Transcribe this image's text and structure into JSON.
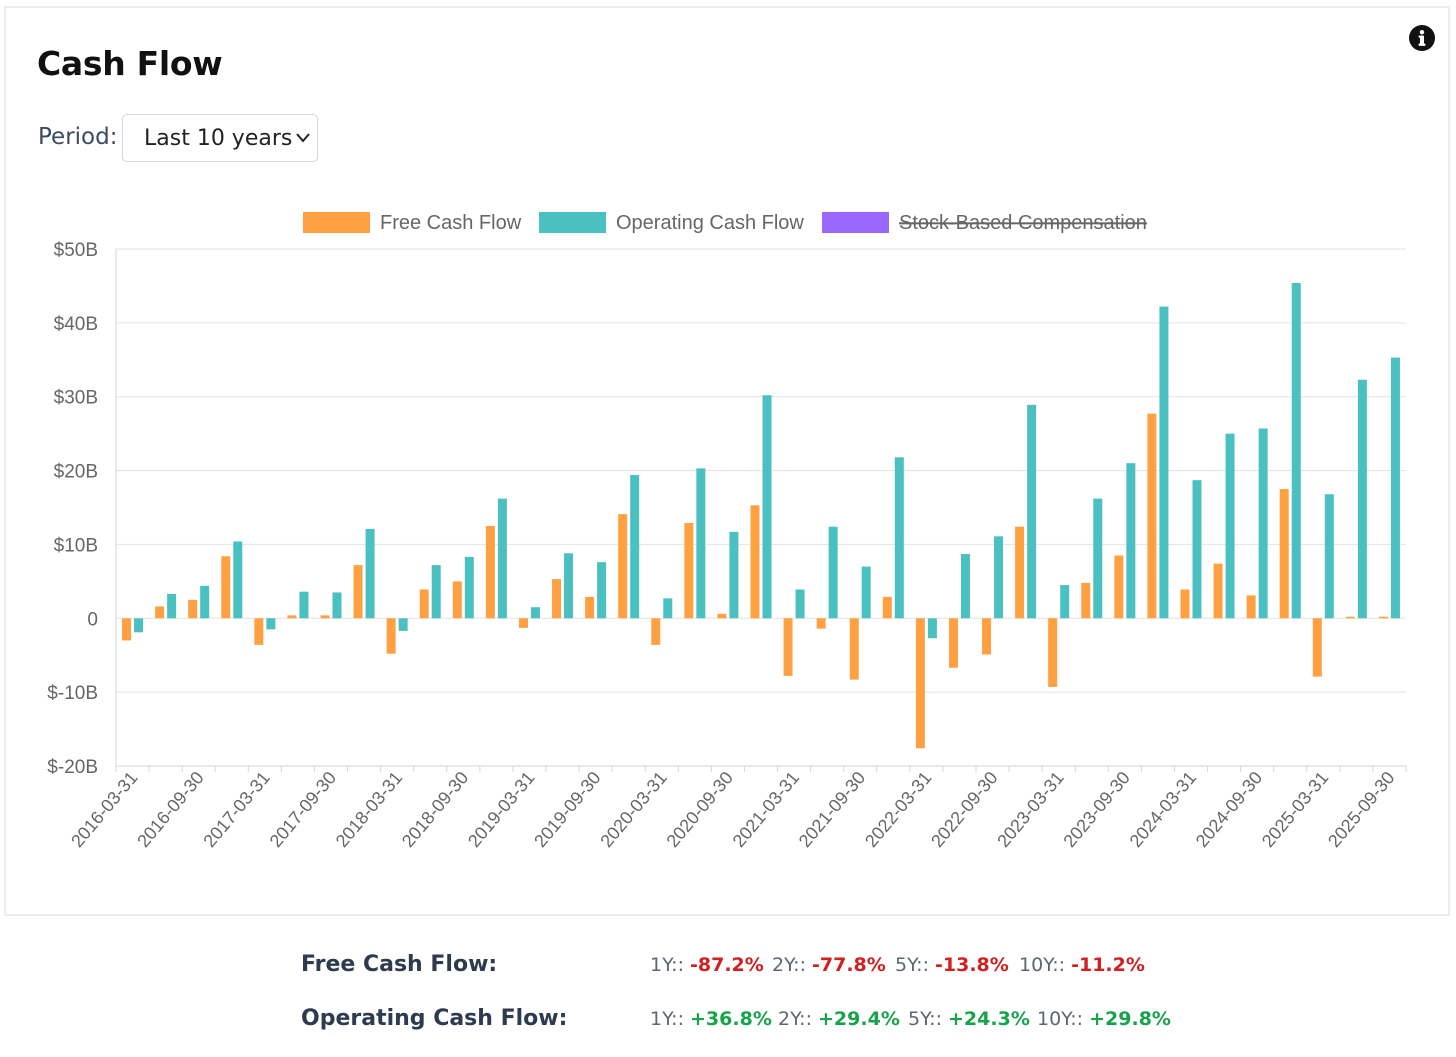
{
  "header": {
    "title": "Cash Flow",
    "info_icon": "info-icon"
  },
  "period": {
    "label": "Period:",
    "selected": "Last 10 years"
  },
  "colors": {
    "fcf": "#ffa143",
    "ocf": "#4bc0c0",
    "sbc": "#9966ff",
    "neg": "#d21f1f",
    "pos": "#16a34a"
  },
  "chart_data": {
    "type": "bar",
    "legend": [
      {
        "name": "Free Cash Flow",
        "hidden": false
      },
      {
        "name": "Operating Cash Flow",
        "hidden": false
      },
      {
        "name": "Stock-Based Compensation",
        "hidden": true
      }
    ],
    "y_tick_labels": [
      "$50B",
      "$40B",
      "$30B",
      "$20B",
      "$10B",
      "0",
      "$-10B",
      "$-20B"
    ],
    "y_ticks": [
      50,
      40,
      30,
      20,
      10,
      0,
      -10,
      -20
    ],
    "ylim": [
      -20,
      50
    ],
    "x_tick_labels": [
      "2016-03-31",
      "2016-09-30",
      "2017-03-31",
      "2017-09-30",
      "2018-03-31",
      "2018-09-30",
      "2019-03-31",
      "2019-09-30",
      "2020-03-31",
      "2020-09-30",
      "2021-03-31",
      "2021-09-30",
      "2022-03-31",
      "2022-09-30",
      "2023-03-31",
      "2023-09-30",
      "2024-03-31",
      "2024-09-30",
      "2025-03-31",
      "2025-09-30"
    ],
    "categories": [
      "2016-03-31",
      "2016-06-30",
      "2016-09-30",
      "2016-12-31",
      "2017-03-31",
      "2017-06-30",
      "2017-09-30",
      "2017-12-31",
      "2018-03-31",
      "2018-06-30",
      "2018-09-30",
      "2018-12-31",
      "2019-03-31",
      "2019-06-30",
      "2019-09-30",
      "2019-12-31",
      "2020-03-31",
      "2020-06-30",
      "2020-09-30",
      "2020-12-31",
      "2021-03-31",
      "2021-06-30",
      "2021-09-30",
      "2021-12-31",
      "2022-03-31",
      "2022-06-30",
      "2022-09-30",
      "2022-12-31",
      "2023-03-31",
      "2023-06-30",
      "2023-09-30",
      "2023-12-31",
      "2024-03-31",
      "2024-06-30",
      "2024-09-30",
      "2024-12-31",
      "2025-03-31",
      "2025-06-30",
      "2025-09-30"
    ],
    "series": [
      {
        "name": "Free Cash Flow",
        "values": [
          -3.0,
          1.6,
          2.5,
          8.4,
          -3.6,
          0.4,
          0.4,
          7.2,
          -4.8,
          3.9,
          5.0,
          12.5,
          -1.3,
          5.3,
          2.9,
          14.1,
          -3.6,
          12.9,
          0.6,
          15.3,
          -7.8,
          -1.4,
          -8.3,
          2.9,
          -17.6,
          -6.7,
          -4.9,
          12.4,
          -9.3,
          4.8,
          8.5,
          27.7,
          3.9,
          7.4,
          3.1,
          17.5,
          -7.9,
          0.2,
          0.2
        ]
      },
      {
        "name": "Operating Cash Flow",
        "values": [
          -1.9,
          3.3,
          4.4,
          10.4,
          -1.5,
          3.6,
          3.5,
          12.1,
          -1.7,
          7.2,
          8.3,
          16.2,
          1.5,
          8.8,
          7.6,
          19.4,
          2.7,
          20.3,
          11.7,
          30.2,
          3.9,
          12.4,
          7.0,
          21.8,
          -2.7,
          8.7,
          11.1,
          28.9,
          4.5,
          16.2,
          21.0,
          42.2,
          18.7,
          25.0,
          25.7,
          45.4,
          16.8,
          32.3,
          35.3
        ]
      }
    ]
  },
  "stats": [
    {
      "label": "Free Cash Flow:",
      "items": [
        {
          "k": "1Y::",
          "v": "-87.2%",
          "sign": "neg"
        },
        {
          "k": "2Y::",
          "v": "-77.8%",
          "sign": "neg"
        },
        {
          "k": "5Y::",
          "v": "-13.8%",
          "sign": "neg"
        },
        {
          "k": "10Y::",
          "v": "-11.2%",
          "sign": "neg"
        }
      ]
    },
    {
      "label": "Operating Cash Flow:",
      "items": [
        {
          "k": "1Y::",
          "v": "+36.8%",
          "sign": "pos"
        },
        {
          "k": "2Y::",
          "v": "+29.4%",
          "sign": "pos"
        },
        {
          "k": "5Y::",
          "v": "+24.3%",
          "sign": "pos"
        },
        {
          "k": "10Y::",
          "v": "+29.8%",
          "sign": "pos"
        }
      ]
    }
  ]
}
